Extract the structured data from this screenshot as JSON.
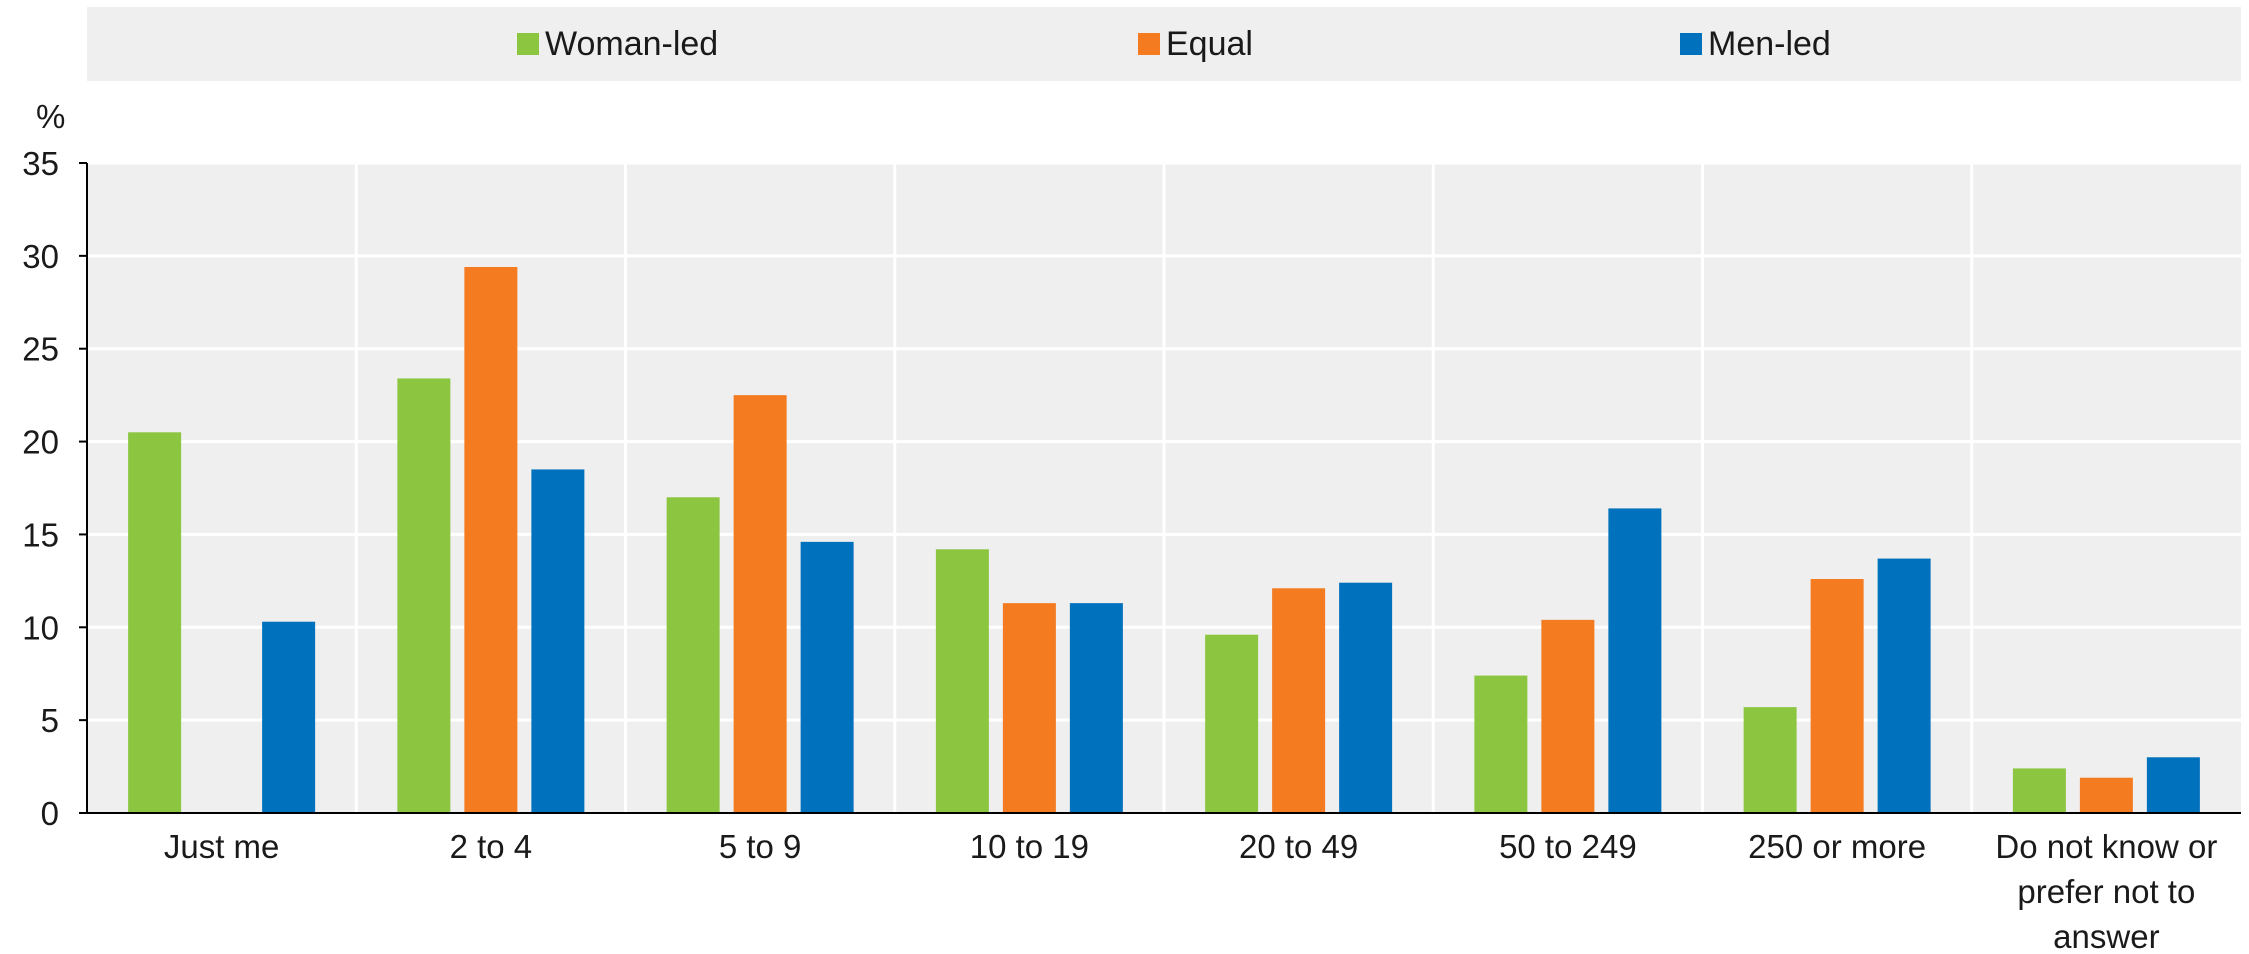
{
  "chart_data": {
    "type": "bar",
    "unit_label": "%",
    "ylim": [
      0,
      35
    ],
    "yticks": [
      0,
      5,
      10,
      15,
      20,
      25,
      30,
      35
    ],
    "grid": true,
    "legend_position": "top",
    "categories": [
      [
        "Just me"
      ],
      [
        "2 to 4"
      ],
      [
        "5 to 9"
      ],
      [
        "10 to 19"
      ],
      [
        "20 to 49"
      ],
      [
        "50 to 249"
      ],
      [
        "250 or more"
      ],
      [
        "Do not know or",
        "prefer not to",
        "answer"
      ]
    ],
    "series": [
      {
        "name": "Woman-led",
        "color": "#8cc641",
        "values": [
          20.5,
          23.4,
          17.0,
          14.2,
          9.6,
          7.4,
          5.7,
          2.4
        ]
      },
      {
        "name": "Equal",
        "color": "#f47b20",
        "values": [
          0,
          29.4,
          22.5,
          11.3,
          12.1,
          10.4,
          12.6,
          1.9
        ]
      },
      {
        "name": "Men-led",
        "color": "#0071bc",
        "values": [
          10.3,
          18.5,
          14.6,
          11.3,
          12.4,
          16.4,
          13.7,
          3.0
        ]
      }
    ]
  }
}
